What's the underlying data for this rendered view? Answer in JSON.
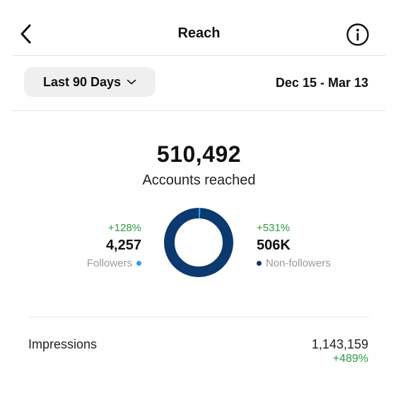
{
  "header": {
    "title": "Reach"
  },
  "filter": {
    "range_label": "Last 90 Days",
    "date_range": "Dec 15 - Mar 13"
  },
  "summary": {
    "accounts_reached": "510,492",
    "accounts_reached_label": "Accounts reached"
  },
  "followers": {
    "change": "+128%",
    "value": "4,257",
    "label": "Followers",
    "color": "#2f9ff0",
    "count": 4257
  },
  "non_followers": {
    "change": "+531%",
    "value": "506K",
    "label": "Non-followers",
    "color": "#0b3970",
    "count": 506235
  },
  "impressions": {
    "label": "Impressions",
    "value": "1,143,159",
    "change": "+489%"
  }
}
